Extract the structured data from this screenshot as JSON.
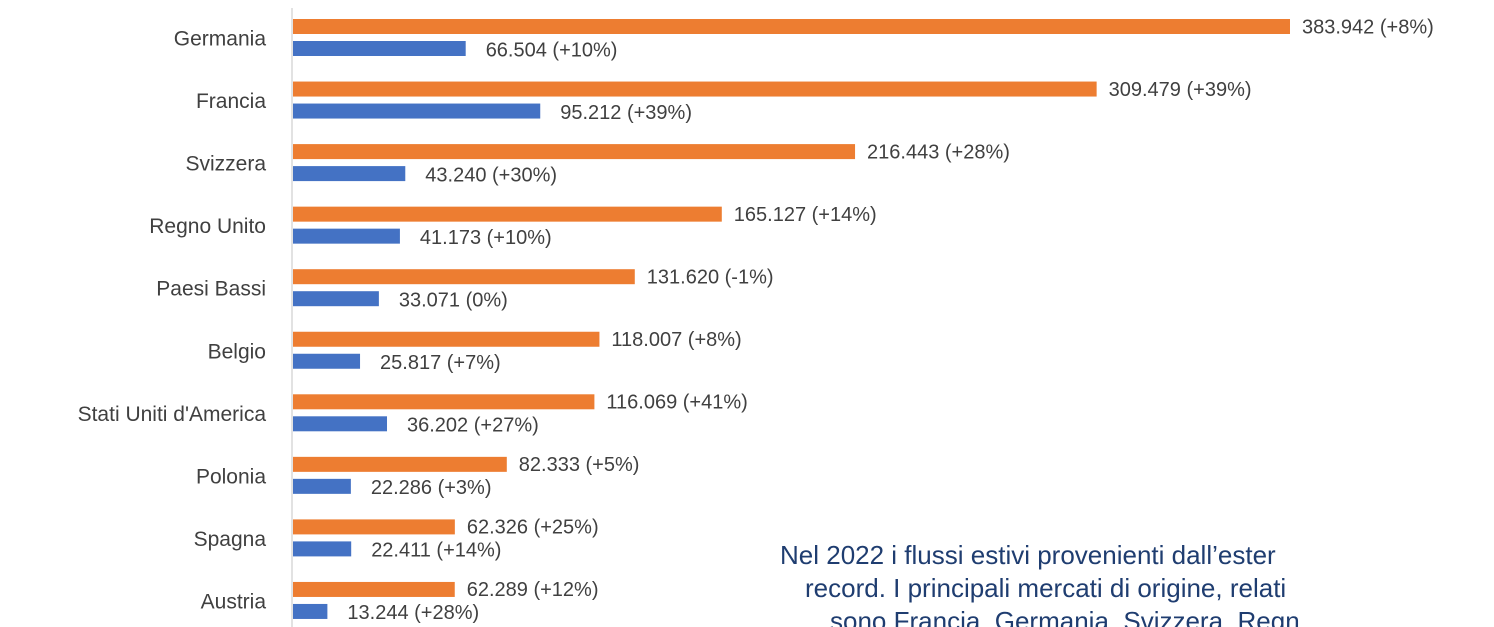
{
  "chart_data": {
    "type": "hbar",
    "categories": [
      "Germania",
      "Francia",
      "Svizzera",
      "Regno Unito",
      "Paesi Bassi",
      "Belgio",
      "Stati Uniti d'America",
      "Polonia",
      "Spagna",
      "Austria"
    ],
    "series": [
      {
        "color": "#ed7d31",
        "values": [
          383942,
          309479,
          216443,
          165127,
          131620,
          118007,
          116069,
          82333,
          62326,
          62289
        ],
        "value_labels": [
          "383.942 (+8%)",
          "309.479 (+39%)",
          "216.443 (+28%)",
          "165.127 (+14%)",
          "131.620 (-1%)",
          "118.007 (+8%)",
          "116.069 (+41%)",
          "82.333 (+5%)",
          "62.326 (+25%)",
          "62.289 (+12%)"
        ]
      },
      {
        "color": "#4472c4",
        "values": [
          66504,
          95212,
          43240,
          41173,
          33071,
          25817,
          36202,
          22286,
          22411,
          13244
        ],
        "value_labels": [
          "66.504 (+10%)",
          "95.212 (+39%)",
          "43.240 (+30%)",
          "41.173 (+10%)",
          "33.071 (0%)",
          "25.817 (+7%)",
          "36.202 (+27%)",
          "22.286 (+3%)",
          "22.411 (+14%)",
          "13.244 (+28%)"
        ]
      }
    ],
    "annotation_lines": [
      "Nel 2022 i flussi estivi provenienti dall’ester",
      "record. I principali mercati di origine, relati",
      "sono Francia, Germania, Svizzera, Regn"
    ]
  }
}
